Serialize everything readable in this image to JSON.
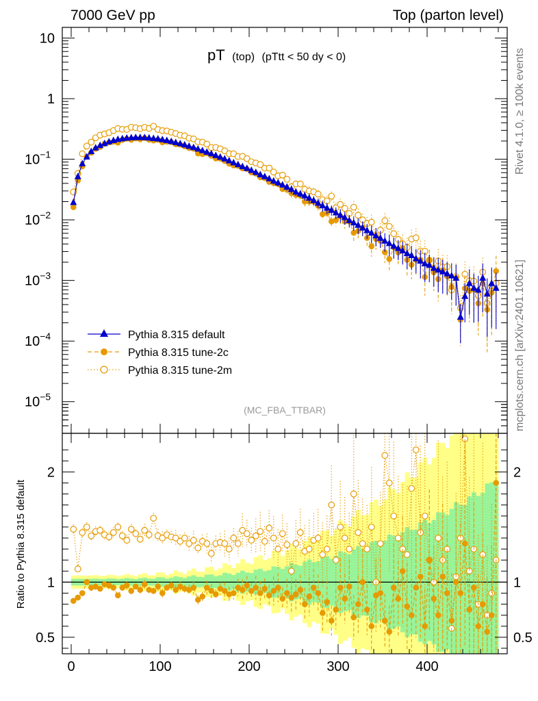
{
  "header": {
    "left": "7000 GeV pp",
    "right": "Top (parton level)"
  },
  "side_labels": {
    "rivet": "Rivet 4.1.0, ≥ 100k events",
    "mcplots": "mcplots.cern.ch [arXiv:2401.10621]"
  },
  "chart_data": {
    "type": "scatter",
    "title_main": "pT",
    "title_sub1": "(top)",
    "title_sub2": "(pTtt < 50 dy < 0)",
    "analysis": "(MC_FBA_TTBAR)",
    "ratio_ylabel": "Ratio to Pythia 8.315 default",
    "xlim": [
      -10,
      490
    ],
    "ylim_log": [
      3e-06,
      15
    ],
    "ratio_ylim": [
      0.35,
      2.35
    ],
    "x_ticks": [
      0,
      100,
      200,
      300,
      400
    ],
    "x_tick_labels": [
      "0",
      "100",
      "200",
      "300",
      "400"
    ],
    "y_ticks": [
      10,
      1,
      0.1,
      0.01,
      0.001,
      0.0001,
      1e-05
    ],
    "y_tick_labels": [
      {
        "base": "10",
        "exp": ""
      },
      {
        "base": "1",
        "exp": ""
      },
      {
        "base": "10",
        "exp": "−1"
      },
      {
        "base": "10",
        "exp": "−2"
      },
      {
        "base": "10",
        "exp": "−3"
      },
      {
        "base": "10",
        "exp": "−4"
      },
      {
        "base": "10",
        "exp": "−5"
      }
    ],
    "ratio_ticks": [
      0.5,
      1,
      2
    ],
    "ratio_tick_labels": [
      "0.5",
      "1",
      "2"
    ],
    "legend": [
      {
        "name": "Pythia 8.315 default",
        "marker": "triangle",
        "color": "#0000cc",
        "style": "solid"
      },
      {
        "name": "Pythia 8.315 tune-2c",
        "marker": "circle",
        "color": "#e69a00",
        "style": "dashed"
      },
      {
        "name": "Pythia 8.315 tune-2m",
        "marker": "open-circle",
        "color": "#e69a00",
        "style": "dotted"
      }
    ],
    "x": [
      2.5,
      7.5,
      12.5,
      17.5,
      22.5,
      27.5,
      32.5,
      37.5,
      42.5,
      47.5,
      52.5,
      57.5,
      62.5,
      67.5,
      72.5,
      77.5,
      82.5,
      87.5,
      92.5,
      97.5,
      102.5,
      107.5,
      112.5,
      117.5,
      122.5,
      127.5,
      132.5,
      137.5,
      142.5,
      147.5,
      152.5,
      157.5,
      162.5,
      167.5,
      172.5,
      177.5,
      182.5,
      187.5,
      192.5,
      197.5,
      202.5,
      207.5,
      212.5,
      217.5,
      222.5,
      227.5,
      232.5,
      237.5,
      242.5,
      247.5,
      252.5,
      257.5,
      262.5,
      267.5,
      272.5,
      277.5,
      282.5,
      287.5,
      292.5,
      297.5,
      302.5,
      307.5,
      312.5,
      317.5,
      322.5,
      327.5,
      332.5,
      337.5,
      342.5,
      347.5,
      352.5,
      357.5,
      362.5,
      367.5,
      372.5,
      377.5,
      382.5,
      387.5,
      392.5,
      397.5,
      402.5,
      407.5,
      412.5,
      417.5,
      422.5,
      427.5,
      432.5,
      437.5,
      442.5,
      447.5,
      452.5,
      457.5,
      462.5,
      467.5,
      472.5,
      477.5
    ],
    "series": [
      {
        "name": "Pythia 8.315 default",
        "values": [
          0.0195,
          0.052,
          0.085,
          0.11,
          0.135,
          0.155,
          0.17,
          0.183,
          0.195,
          0.205,
          0.214,
          0.22,
          0.225,
          0.228,
          0.23,
          0.23,
          0.229,
          0.226,
          0.222,
          0.218,
          0.212,
          0.205,
          0.198,
          0.19,
          0.182,
          0.174,
          0.165,
          0.157,
          0.148,
          0.14,
          0.132,
          0.124,
          0.116,
          0.109,
          0.102,
          0.095,
          0.088,
          0.082,
          0.076,
          0.071,
          0.066,
          0.061,
          0.056,
          0.052,
          0.048,
          0.044,
          0.041,
          0.038,
          0.035,
          0.032,
          0.029,
          0.027,
          0.025,
          0.023,
          0.021,
          0.019,
          0.0172,
          0.0158,
          0.0145,
          0.0132,
          0.012,
          0.011,
          0.0098,
          0.009,
          0.0082,
          0.0074,
          0.0067,
          0.0061,
          0.0055,
          0.005,
          0.0045,
          0.0041,
          0.0037,
          0.0034,
          0.0031,
          0.0028,
          0.0026,
          0.0023,
          0.0021,
          0.0019,
          0.0018,
          0.0016,
          0.0015,
          0.0014,
          0.0013,
          0.0012,
          0.0011,
          0.00025,
          0.00055,
          0.0009,
          0.00075,
          0.0007,
          0.0011,
          0.0006,
          0.0009,
          0.00075
        ],
        "ratio": [
          1,
          1,
          1,
          1,
          1,
          1,
          1,
          1,
          1,
          1,
          1,
          1,
          1,
          1,
          1,
          1,
          1,
          1,
          1,
          1,
          1,
          1,
          1,
          1,
          1,
          1,
          1,
          1,
          1,
          1,
          1,
          1,
          1,
          1,
          1,
          1,
          1,
          1,
          1,
          1,
          1,
          1,
          1,
          1,
          1,
          1,
          1,
          1,
          1,
          1,
          1,
          1,
          1,
          1,
          1,
          1,
          1,
          1,
          1,
          1,
          1,
          1,
          1,
          1,
          1,
          1,
          1,
          1,
          1,
          1,
          1,
          1,
          1,
          1,
          1,
          1,
          1,
          1,
          1,
          1,
          1,
          1,
          1,
          1,
          1,
          1,
          1,
          1,
          1,
          1,
          1,
          1,
          1,
          1,
          1,
          1
        ]
      },
      {
        "name": "Pythia 8.315 tune-2c",
        "ratio": [
          0.83,
          0.86,
          0.9,
          1.0,
          0.95,
          0.96,
          0.94,
          0.98,
          0.97,
          0.95,
          0.88,
          0.95,
          0.97,
          0.92,
          0.96,
          0.93,
          0.98,
          0.93,
          0.92,
          0.96,
          0.9,
          0.95,
          0.97,
          0.93,
          0.96,
          0.94,
          0.93,
          0.95,
          0.84,
          0.87,
          0.95,
          0.92,
          0.89,
          0.94,
          0.92,
          0.89,
          0.9,
          0.95,
          0.93,
          0.97,
          0.92,
          0.95,
          0.9,
          0.94,
          0.88,
          0.92,
          0.95,
          0.85,
          0.9,
          0.86,
          0.89,
          0.93,
          0.8,
          0.87,
          0.95,
          0.9,
          0.72,
          0.82,
          0.65,
          0.75,
          0.95,
          0.85,
          0.96,
          0.68,
          0.8,
          1.0,
          0.75,
          0.6,
          0.88,
          0.9,
          0.65,
          0.55,
          0.95,
          0.85,
          1.1,
          0.78,
          0.7,
          0.95,
          1.05,
          0.6,
          1.2,
          0.85,
          0.7,
          1.05,
          0.9,
          0.65,
          1.0,
          0.9,
          1.35,
          0.75,
          0.95,
          0.6,
          0.8,
          0.55,
          0.7,
          1.9
        ]
      },
      {
        "name": "Pythia 8.315 tune-2m",
        "ratio": [
          1.48,
          1.12,
          1.45,
          1.5,
          1.42,
          1.46,
          1.47,
          1.43,
          1.41,
          1.45,
          1.5,
          1.42,
          1.38,
          1.48,
          1.44,
          1.39,
          1.47,
          1.43,
          1.58,
          1.42,
          1.4,
          1.43,
          1.41,
          1.4,
          1.37,
          1.4,
          1.35,
          1.38,
          1.31,
          1.37,
          1.35,
          1.26,
          1.35,
          1.36,
          1.35,
          1.3,
          1.4,
          1.35,
          1.47,
          1.44,
          1.38,
          1.42,
          1.46,
          1.37,
          1.49,
          1.4,
          1.3,
          1.44,
          1.34,
          1.1,
          1.35,
          1.45,
          1.28,
          1.3,
          1.38,
          1.4,
          1.25,
          1.3,
          1.7,
          1.2,
          1.5,
          1.4,
          1.3,
          1.8,
          1.45,
          1.35,
          1.3,
          1.5,
          1.0,
          1.35,
          2.15,
          1.9,
          1.6,
          1.4,
          1.3,
          1.25,
          1.85,
          2.2,
          1.45,
          1.6,
          1.2,
          1.0,
          1.4,
          1.2,
          1.3,
          0.58,
          1.05,
          1.4,
          2.3,
          1.1,
          1.3,
          0.8,
          1.25,
          0.7,
          0.9,
          1.2
        ]
      }
    ]
  }
}
